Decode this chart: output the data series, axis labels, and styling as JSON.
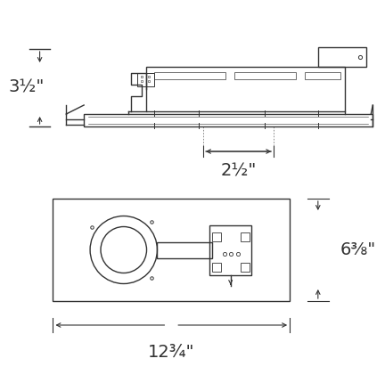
{
  "bg_color": "#ffffff",
  "line_color": "#333333",
  "dim_color": "#333333",
  "fig_width": 4.32,
  "fig_height": 4.3,
  "dpi": 100,
  "top_view": {
    "label_35": "3½\"",
    "label_25": "2½\""
  },
  "bottom_view": {
    "label_638": "6⅜\"",
    "label_1234": "12¾\""
  }
}
